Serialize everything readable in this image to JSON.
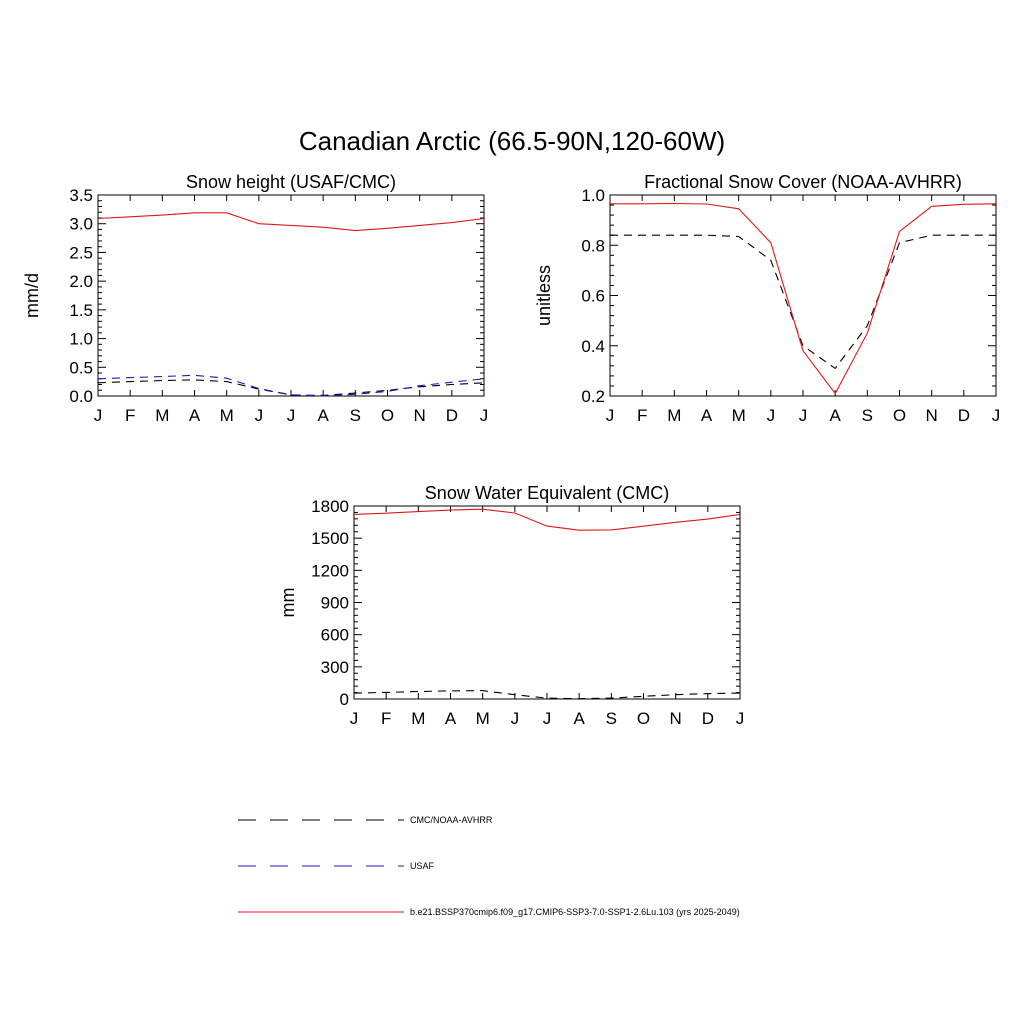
{
  "figure": {
    "title": "Canadian Arctic (66.5-90N,120-60W)"
  },
  "months": [
    "J",
    "F",
    "M",
    "A",
    "M",
    "J",
    "J",
    "A",
    "S",
    "O",
    "N",
    "D",
    "J"
  ],
  "colors": {
    "obs": "#000000",
    "usaf": "#1a1acc",
    "model": "#e01818"
  },
  "chart_data": [
    {
      "type": "line",
      "title": "Snow height (USAF/CMC)",
      "xlabel": "",
      "ylabel": "mm/d",
      "categories": [
        "J",
        "F",
        "M",
        "A",
        "M",
        "J",
        "J",
        "A",
        "S",
        "O",
        "N",
        "D",
        "J"
      ],
      "ylim": [
        0,
        3.5
      ],
      "yticks": [
        0,
        0.5,
        1,
        1.5,
        2,
        2.5,
        3,
        3.5
      ],
      "ytick_labels": [
        "0.0",
        "0.5",
        "1.0",
        "1.5",
        "2.0",
        "2.5",
        "3.0",
        "3.5"
      ],
      "series": [
        {
          "name": "CMC/NOAA-AVHRR",
          "style": "dashed",
          "color": "#000000",
          "values": [
            0.23,
            0.25,
            0.27,
            0.28,
            0.25,
            0.12,
            0.02,
            0.01,
            0.05,
            0.1,
            0.16,
            0.2,
            0.23
          ]
        },
        {
          "name": "USAF",
          "style": "dashed",
          "color": "#1a1acc",
          "values": [
            0.3,
            0.32,
            0.34,
            0.36,
            0.31,
            0.13,
            0.02,
            0.0,
            0.03,
            0.08,
            0.18,
            0.24,
            0.3
          ]
        },
        {
          "name": "b.e21.BSSP370cmip6.f09_g17.CMIP6-SSP3-7.0-SSP1-2.6Lu.103 (yrs 2025-2049)",
          "style": "solid",
          "color": "#e01818",
          "values": [
            3.09,
            3.12,
            3.15,
            3.19,
            3.19,
            3.0,
            2.97,
            2.94,
            2.88,
            2.92,
            2.97,
            3.02,
            3.09
          ]
        }
      ]
    },
    {
      "type": "line",
      "title": "Fractional Snow Cover (NOAA-AVHRR)",
      "xlabel": "",
      "ylabel": "unitless",
      "categories": [
        "J",
        "F",
        "M",
        "A",
        "M",
        "J",
        "J",
        "A",
        "S",
        "O",
        "N",
        "D",
        "J"
      ],
      "ylim": [
        0.2,
        1.0
      ],
      "yticks": [
        0.2,
        0.4,
        0.6,
        0.8,
        1.0
      ],
      "ytick_labels": [
        "0.2",
        "0.4",
        "0.6",
        "0.8",
        "1.0"
      ],
      "series": [
        {
          "name": "CMC/NOAA-AVHRR",
          "style": "dashed",
          "color": "#000000",
          "values": [
            0.84,
            0.84,
            0.84,
            0.84,
            0.835,
            0.74,
            0.4,
            0.31,
            0.48,
            0.81,
            0.84,
            0.84,
            0.84
          ]
        },
        {
          "name": "b.e21.BSSP370cmip6.f09_g17.CMIP6-SSP3-7.0-SSP1-2.6Lu.103 (yrs 2025-2049)",
          "style": "solid",
          "color": "#e01818",
          "values": [
            0.965,
            0.965,
            0.966,
            0.964,
            0.945,
            0.81,
            0.38,
            0.21,
            0.45,
            0.855,
            0.955,
            0.963,
            0.965
          ]
        }
      ]
    },
    {
      "type": "line",
      "title": "Snow Water Equivalent (CMC)",
      "xlabel": "",
      "ylabel": "mm",
      "categories": [
        "J",
        "F",
        "M",
        "A",
        "M",
        "J",
        "J",
        "A",
        "S",
        "O",
        "N",
        "D",
        "J"
      ],
      "ylim": [
        0,
        1800
      ],
      "yticks": [
        0,
        300,
        600,
        900,
        1200,
        1500,
        1800
      ],
      "ytick_labels": [
        "0",
        "300",
        "600",
        "900",
        "1200",
        "1500",
        "1800"
      ],
      "series": [
        {
          "name": "CMC/NOAA-AVHRR",
          "style": "dashed",
          "color": "#000000",
          "values": [
            55,
            62,
            70,
            76,
            78,
            40,
            8,
            3,
            8,
            25,
            40,
            50,
            55
          ]
        },
        {
          "name": "b.e21.BSSP370cmip6.f09_g17.CMIP6-SSP3-7.0-SSP1-2.6Lu.103 (yrs 2025-2049)",
          "style": "solid",
          "color": "#e01818",
          "values": [
            1722,
            1733,
            1748,
            1762,
            1770,
            1735,
            1613,
            1574,
            1577,
            1612,
            1648,
            1678,
            1722
          ]
        }
      ]
    }
  ],
  "legend": {
    "placement": "bottom",
    "entries": [
      {
        "label": "CMC/NOAA-AVHRR",
        "style": "dashed",
        "color": "#000000"
      },
      {
        "label": "USAF",
        "style": "dashed",
        "color": "#1a1acc"
      },
      {
        "label": "b.e21.BSSP370cmip6.f09_g17.CMIP6-SSP3-7.0-SSP1-2.6Lu.103 (yrs 2025-2049)",
        "style": "solid",
        "color": "#e01818"
      }
    ]
  }
}
